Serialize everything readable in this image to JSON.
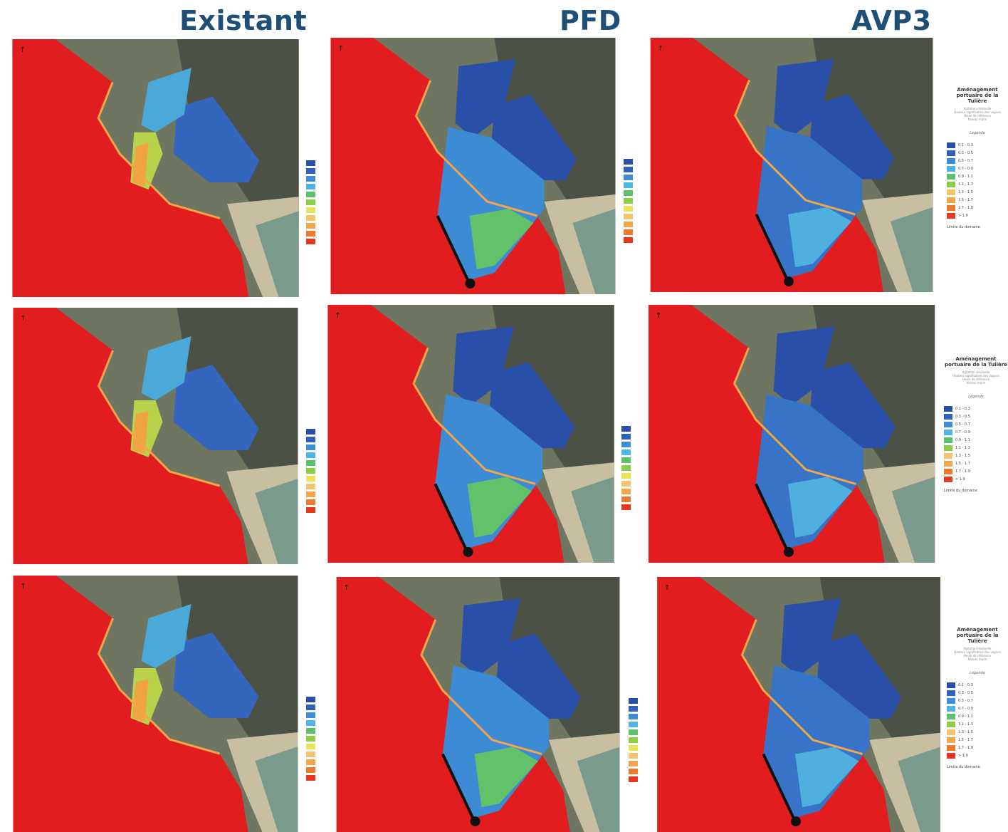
{
  "columns": [
    "Existant",
    "PFD",
    "AVP3"
  ],
  "legend": {
    "title": "Aménagement portuaire de la Tulière",
    "subtitle_lines": [
      "Agitation résiduelle",
      "Hauteur significative des vagues",
      "Houle de référence",
      "Niveau marin"
    ],
    "heading": "Légende",
    "entries": [
      "0.1 - 0.3",
      "0.3 - 0.5",
      "0.5 - 0.7",
      "0.7 - 0.9",
      "0.9 - 1.1",
      "1.1 - 1.3",
      "1.3 - 1.5",
      "1.5 - 1.7",
      "1.7 - 1.9",
      "> 1.9"
    ],
    "line_label": "Limite du domaine"
  },
  "colors": {
    "title": "#1f4f77",
    "sea": "#e21d1f",
    "scale": [
      "#2a4fa8",
      "#2f63bb",
      "#3f8ed4",
      "#4db6e2",
      "#5cc16e",
      "#8ccf45",
      "#e8e45a",
      "#f4c46e",
      "#f3a54a",
      "#ee7a2c",
      "#e8361f"
    ]
  }
}
